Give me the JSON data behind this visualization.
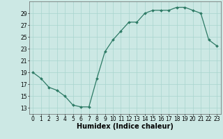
{
  "x": [
    0,
    1,
    2,
    3,
    4,
    5,
    6,
    7,
    8,
    9,
    10,
    11,
    12,
    13,
    14,
    15,
    16,
    17,
    18,
    19,
    20,
    21,
    22,
    23
  ],
  "y": [
    19,
    18,
    16.5,
    16,
    15,
    13.5,
    13.2,
    13.2,
    18,
    22.5,
    24.5,
    26,
    27.5,
    27.5,
    29,
    29.5,
    29.5,
    29.5,
    30,
    30,
    29.5,
    29,
    24.5,
    23.5
  ],
  "line_color": "#2d7a65",
  "marker_color": "#2d7a65",
  "bg_color": "#cce8e4",
  "grid_color": "#a8d4ce",
  "xlabel": "Humidex (Indice chaleur)",
  "xlim": [
    -0.5,
    23.5
  ],
  "ylim": [
    12,
    31
  ],
  "yticks": [
    13,
    15,
    17,
    19,
    21,
    23,
    25,
    27,
    29
  ],
  "xticks": [
    0,
    1,
    2,
    3,
    4,
    5,
    6,
    7,
    8,
    9,
    10,
    11,
    12,
    13,
    14,
    15,
    16,
    17,
    18,
    19,
    20,
    21,
    22,
    23
  ],
  "tick_fontsize": 5.5,
  "xlabel_fontsize": 7.0,
  "linewidth": 0.9,
  "markersize": 2.0
}
